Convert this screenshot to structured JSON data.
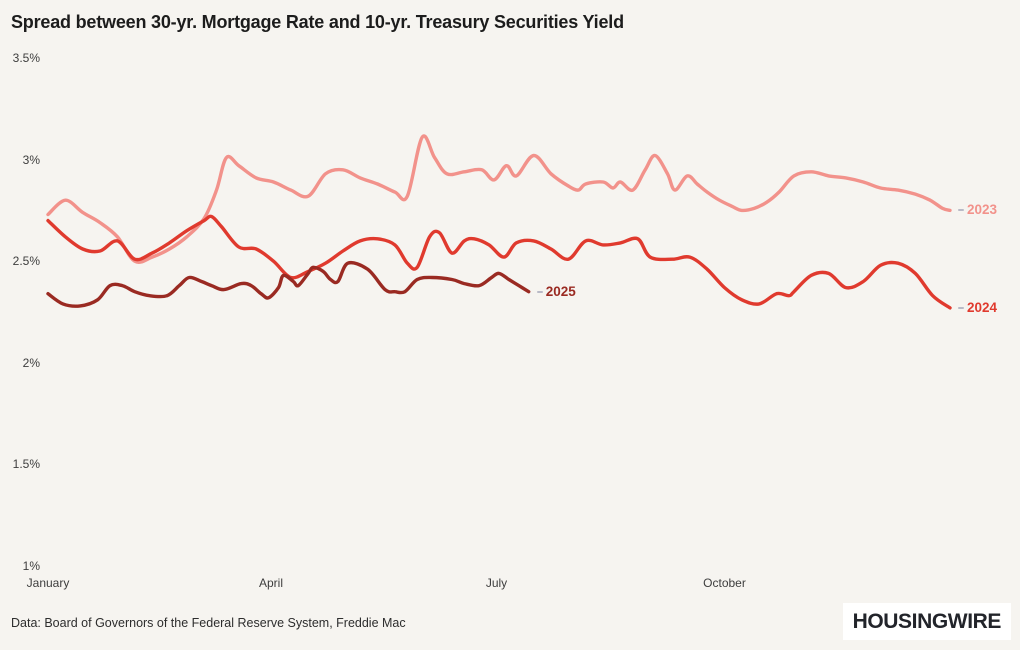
{
  "title": "Spread between 30-yr. Mortgage Rate and 10-yr. Treasury Securities Yield",
  "source": "Data: Board of Governors of the Federal Reserve System, Freddie Mac",
  "logo": {
    "text": "HOUSINGWIRE"
  },
  "colors": {
    "background": "#f6f4f0",
    "title_text": "#1c1c1c",
    "axis_text": "#3d3d3d",
    "source_text": "#2d2d2d",
    "label_connector": "#b9bac7",
    "logo_bg": "#ffffff",
    "logo_text": "#22242a"
  },
  "chart_data": {
    "type": "line",
    "title": "Spread between 30-yr. Mortgage Rate and 10-yr. Treasury Securities Yield",
    "xlabel": "",
    "ylabel": "",
    "unit": "%",
    "grid": "off",
    "legend": "end-of-line labels",
    "ylim": [
      1,
      3.5
    ],
    "y_axis": {
      "ticks": [
        {
          "value": 3.5,
          "label": "3.5%"
        },
        {
          "value": 3.0,
          "label": "3%"
        },
        {
          "value": 2.5,
          "label": "2.5%"
        },
        {
          "value": 2.0,
          "label": "2%"
        },
        {
          "value": 1.5,
          "label": "1.5%"
        },
        {
          "value": 1.0,
          "label": "1%"
        }
      ]
    },
    "x_axis": {
      "domain_days": [
        0,
        364
      ],
      "ticks": [
        {
          "day": 0,
          "label": "January"
        },
        {
          "day": 90,
          "label": "April"
        },
        {
          "day": 181,
          "label": "July"
        },
        {
          "day": 273,
          "label": "October"
        }
      ]
    },
    "series": [
      {
        "name": "2023",
        "color": "#f2928b",
        "points": [
          [
            0,
            2.73
          ],
          [
            7,
            2.8
          ],
          [
            14,
            2.74
          ],
          [
            21,
            2.69
          ],
          [
            28,
            2.62
          ],
          [
            35,
            2.5
          ],
          [
            42,
            2.52
          ],
          [
            49,
            2.56
          ],
          [
            56,
            2.62
          ],
          [
            63,
            2.71
          ],
          [
            68,
            2.85
          ],
          [
            72,
            3.01
          ],
          [
            77,
            2.97
          ],
          [
            84,
            2.91
          ],
          [
            91,
            2.89
          ],
          [
            98,
            2.85
          ],
          [
            105,
            2.82
          ],
          [
            112,
            2.93
          ],
          [
            119,
            2.95
          ],
          [
            126,
            2.91
          ],
          [
            133,
            2.88
          ],
          [
            140,
            2.84
          ],
          [
            145,
            2.82
          ],
          [
            151,
            3.11
          ],
          [
            156,
            3.01
          ],
          [
            161,
            2.93
          ],
          [
            168,
            2.94
          ],
          [
            175,
            2.95
          ],
          [
            180,
            2.9
          ],
          [
            185,
            2.97
          ],
          [
            189,
            2.92
          ],
          [
            196,
            3.02
          ],
          [
            203,
            2.93
          ],
          [
            210,
            2.87
          ],
          [
            214,
            2.85
          ],
          [
            217,
            2.88
          ],
          [
            224,
            2.89
          ],
          [
            228,
            2.86
          ],
          [
            231,
            2.89
          ],
          [
            236,
            2.85
          ],
          [
            241,
            2.95
          ],
          [
            245,
            3.02
          ],
          [
            250,
            2.93
          ],
          [
            253,
            2.85
          ],
          [
            258,
            2.92
          ],
          [
            262,
            2.88
          ],
          [
            266,
            2.84
          ],
          [
            271,
            2.8
          ],
          [
            276,
            2.77
          ],
          [
            280,
            2.75
          ],
          [
            285,
            2.76
          ],
          [
            290,
            2.79
          ],
          [
            295,
            2.84
          ],
          [
            301,
            2.92
          ],
          [
            308,
            2.94
          ],
          [
            315,
            2.92
          ],
          [
            322,
            2.91
          ],
          [
            329,
            2.89
          ],
          [
            336,
            2.86
          ],
          [
            343,
            2.85
          ],
          [
            350,
            2.83
          ],
          [
            356,
            2.8
          ],
          [
            361,
            2.76
          ],
          [
            364,
            2.75
          ]
        ]
      },
      {
        "name": "2024",
        "color": "#e03a2e",
        "points": [
          [
            0,
            2.7
          ],
          [
            7,
            2.62
          ],
          [
            14,
            2.56
          ],
          [
            21,
            2.55
          ],
          [
            28,
            2.6
          ],
          [
            35,
            2.51
          ],
          [
            42,
            2.54
          ],
          [
            49,
            2.59
          ],
          [
            56,
            2.65
          ],
          [
            63,
            2.7
          ],
          [
            66,
            2.72
          ],
          [
            70,
            2.67
          ],
          [
            77,
            2.57
          ],
          [
            84,
            2.56
          ],
          [
            91,
            2.5
          ],
          [
            98,
            2.42
          ],
          [
            105,
            2.45
          ],
          [
            112,
            2.49
          ],
          [
            119,
            2.55
          ],
          [
            126,
            2.6
          ],
          [
            133,
            2.61
          ],
          [
            140,
            2.58
          ],
          [
            145,
            2.49
          ],
          [
            149,
            2.47
          ],
          [
            154,
            2.62
          ],
          [
            158,
            2.64
          ],
          [
            163,
            2.54
          ],
          [
            168,
            2.6
          ],
          [
            172,
            2.61
          ],
          [
            178,
            2.58
          ],
          [
            184,
            2.52
          ],
          [
            189,
            2.59
          ],
          [
            196,
            2.6
          ],
          [
            203,
            2.56
          ],
          [
            210,
            2.51
          ],
          [
            217,
            2.6
          ],
          [
            224,
            2.58
          ],
          [
            231,
            2.59
          ],
          [
            238,
            2.61
          ],
          [
            243,
            2.52
          ],
          [
            252,
            2.51
          ],
          [
            259,
            2.52
          ],
          [
            266,
            2.46
          ],
          [
            273,
            2.37
          ],
          [
            280,
            2.31
          ],
          [
            287,
            2.29
          ],
          [
            294,
            2.34
          ],
          [
            299,
            2.33
          ],
          [
            301,
            2.35
          ],
          [
            308,
            2.43
          ],
          [
            315,
            2.44
          ],
          [
            322,
            2.37
          ],
          [
            329,
            2.4
          ],
          [
            336,
            2.48
          ],
          [
            343,
            2.49
          ],
          [
            350,
            2.44
          ],
          [
            357,
            2.33
          ],
          [
            364,
            2.27
          ]
        ]
      },
      {
        "name": "2025",
        "color": "#9a2a22",
        "points": [
          [
            0,
            2.34
          ],
          [
            6,
            2.29
          ],
          [
            13,
            2.28
          ],
          [
            20,
            2.31
          ],
          [
            25,
            2.38
          ],
          [
            30,
            2.38
          ],
          [
            35,
            2.35
          ],
          [
            41,
            2.33
          ],
          [
            48,
            2.33
          ],
          [
            53,
            2.38
          ],
          [
            57,
            2.42
          ],
          [
            62,
            2.4
          ],
          [
            66,
            2.38
          ],
          [
            71,
            2.36
          ],
          [
            78,
            2.39
          ],
          [
            82,
            2.38
          ],
          [
            86,
            2.34
          ],
          [
            89,
            2.32
          ],
          [
            93,
            2.37
          ],
          [
            95,
            2.43
          ],
          [
            99,
            2.4
          ],
          [
            101,
            2.38
          ],
          [
            105,
            2.44
          ],
          [
            107,
            2.47
          ],
          [
            111,
            2.45
          ],
          [
            114,
            2.41
          ],
          [
            117,
            2.4
          ],
          [
            121,
            2.49
          ],
          [
            129,
            2.46
          ],
          [
            136,
            2.36
          ],
          [
            140,
            2.35
          ],
          [
            144,
            2.35
          ],
          [
            149,
            2.41
          ],
          [
            155,
            2.42
          ],
          [
            163,
            2.41
          ],
          [
            168,
            2.39
          ],
          [
            174,
            2.38
          ],
          [
            179,
            2.42
          ],
          [
            182,
            2.44
          ],
          [
            186,
            2.41
          ],
          [
            190,
            2.38
          ],
          [
            194,
            2.35
          ]
        ]
      }
    ]
  }
}
